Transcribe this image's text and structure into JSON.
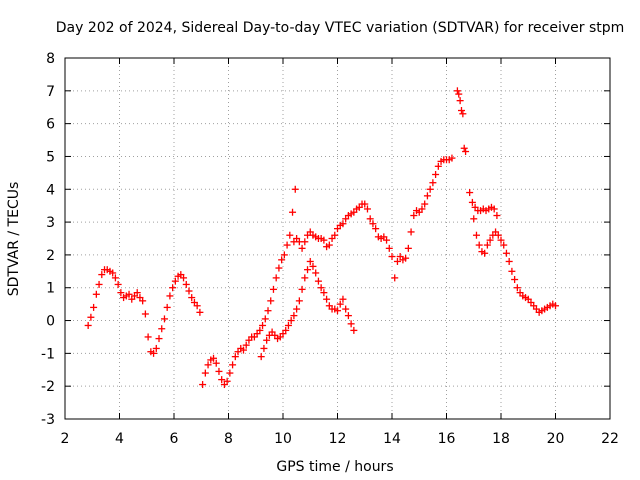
{
  "chart_data": {
    "type": "scatter",
    "title": "Day 202 of 2024, Sidereal Day-to-day VTEC variation (SDTVAR) for receiver stpm",
    "xlabel": "GPS time / hours",
    "ylabel": "SDTVAR / TECUs",
    "xlim": [
      2,
      22
    ],
    "ylim": [
      -3,
      8
    ],
    "xticks": [
      "2",
      "4",
      "6",
      "8",
      "10",
      "12",
      "14",
      "16",
      "18",
      "20",
      "22"
    ],
    "yticks": [
      "-3",
      "-2",
      "-1",
      "0",
      "1",
      "2",
      "3",
      "4",
      "5",
      "6",
      "7",
      "8"
    ],
    "grid": true,
    "marker": "+",
    "color": "#ff0000",
    "series": [
      {
        "points": [
          [
            2.85,
            -0.15
          ],
          [
            2.95,
            0.1
          ],
          [
            3.05,
            0.4
          ],
          [
            3.15,
            0.8
          ],
          [
            3.25,
            1.1
          ],
          [
            3.35,
            1.4
          ],
          [
            3.45,
            1.55
          ],
          [
            3.55,
            1.55
          ],
          [
            3.65,
            1.5
          ],
          [
            3.75,
            1.45
          ],
          [
            3.85,
            1.3
          ],
          [
            3.95,
            1.1
          ],
          [
            4.05,
            0.85
          ],
          [
            4.15,
            0.7
          ],
          [
            4.25,
            0.75
          ],
          [
            4.35,
            0.8
          ],
          [
            4.45,
            0.65
          ],
          [
            4.55,
            0.75
          ],
          [
            4.65,
            0.85
          ],
          [
            4.75,
            0.7
          ],
          [
            4.85,
            0.6
          ],
          [
            4.95,
            0.2
          ],
          [
            5.05,
            -0.5
          ],
          [
            5.15,
            -0.95
          ],
          [
            5.25,
            -1.0
          ],
          [
            5.35,
            -0.85
          ],
          [
            5.45,
            -0.55
          ],
          [
            5.55,
            -0.25
          ],
          [
            5.65,
            0.05
          ],
          [
            5.75,
            0.4
          ],
          [
            5.85,
            0.75
          ],
          [
            5.95,
            1.0
          ],
          [
            6.05,
            1.2
          ],
          [
            6.15,
            1.35
          ],
          [
            6.25,
            1.4
          ],
          [
            6.35,
            1.3
          ],
          [
            6.45,
            1.1
          ],
          [
            6.55,
            0.9
          ],
          [
            6.65,
            0.7
          ],
          [
            6.75,
            0.55
          ],
          [
            6.85,
            0.45
          ],
          [
            6.95,
            0.25
          ],
          [
            7.05,
            -1.95
          ],
          [
            7.15,
            -1.6
          ],
          [
            7.25,
            -1.35
          ],
          [
            7.35,
            -1.2
          ],
          [
            7.45,
            -1.15
          ],
          [
            7.55,
            -1.3
          ],
          [
            7.65,
            -1.55
          ],
          [
            7.75,
            -1.8
          ],
          [
            7.85,
            -1.95
          ],
          [
            7.95,
            -1.85
          ],
          [
            8.05,
            -1.6
          ],
          [
            8.15,
            -1.35
          ],
          [
            8.25,
            -1.1
          ],
          [
            8.35,
            -0.95
          ],
          [
            8.45,
            -0.85
          ],
          [
            8.55,
            -0.9
          ],
          [
            8.65,
            -0.75
          ],
          [
            8.75,
            -0.6
          ],
          [
            8.85,
            -0.5
          ],
          [
            8.95,
            -0.5
          ],
          [
            9.05,
            -0.4
          ],
          [
            9.15,
            -0.3
          ],
          [
            9.25,
            -0.15
          ],
          [
            9.35,
            0.05
          ],
          [
            9.45,
            0.3
          ],
          [
            9.55,
            0.6
          ],
          [
            9.65,
            0.95
          ],
          [
            9.75,
            1.3
          ],
          [
            9.85,
            1.6
          ],
          [
            9.95,
            1.85
          ],
          [
            10.05,
            2.0
          ],
          [
            10.15,
            2.3
          ],
          [
            10.25,
            2.6
          ],
          [
            10.35,
            3.3
          ],
          [
            10.45,
            4.0
          ],
          [
            9.2,
            -1.1
          ],
          [
            9.3,
            -0.85
          ],
          [
            9.4,
            -0.6
          ],
          [
            9.5,
            -0.45
          ],
          [
            9.6,
            -0.35
          ],
          [
            9.7,
            -0.45
          ],
          [
            9.8,
            -0.55
          ],
          [
            9.9,
            -0.5
          ],
          [
            10.0,
            -0.4
          ],
          [
            10.1,
            -0.3
          ],
          [
            10.2,
            -0.15
          ],
          [
            10.3,
            0.0
          ],
          [
            10.4,
            0.15
          ],
          [
            10.5,
            0.35
          ],
          [
            10.6,
            0.6
          ],
          [
            10.7,
            0.95
          ],
          [
            10.8,
            1.3
          ],
          [
            10.9,
            1.55
          ],
          [
            11.0,
            1.8
          ],
          [
            11.1,
            1.65
          ],
          [
            11.2,
            1.45
          ],
          [
            11.3,
            1.2
          ],
          [
            11.4,
            1.0
          ],
          [
            11.5,
            0.85
          ],
          [
            11.6,
            0.65
          ],
          [
            11.7,
            0.45
          ],
          [
            11.8,
            0.35
          ],
          [
            11.9,
            0.35
          ],
          [
            12.0,
            0.3
          ],
          [
            12.1,
            0.5
          ],
          [
            12.2,
            0.65
          ],
          [
            12.3,
            0.35
          ],
          [
            12.4,
            0.15
          ],
          [
            12.5,
            -0.1
          ],
          [
            12.6,
            -0.3
          ],
          [
            10.4,
            2.4
          ],
          [
            10.5,
            2.5
          ],
          [
            10.6,
            2.4
          ],
          [
            10.7,
            2.2
          ],
          [
            10.8,
            2.4
          ],
          [
            10.9,
            2.6
          ],
          [
            11.0,
            2.7
          ],
          [
            11.1,
            2.6
          ],
          [
            11.2,
            2.55
          ],
          [
            11.3,
            2.5
          ],
          [
            11.4,
            2.5
          ],
          [
            11.5,
            2.45
          ],
          [
            11.6,
            2.25
          ],
          [
            11.7,
            2.3
          ],
          [
            11.8,
            2.5
          ],
          [
            11.9,
            2.6
          ],
          [
            12.0,
            2.8
          ],
          [
            12.1,
            2.9
          ],
          [
            12.2,
            2.95
          ],
          [
            12.3,
            3.1
          ],
          [
            12.4,
            3.2
          ],
          [
            12.5,
            3.25
          ],
          [
            12.6,
            3.3
          ],
          [
            12.7,
            3.4
          ],
          [
            12.8,
            3.45
          ],
          [
            12.9,
            3.55
          ],
          [
            13.0,
            3.55
          ],
          [
            13.1,
            3.4
          ],
          [
            13.2,
            3.1
          ],
          [
            13.3,
            2.95
          ],
          [
            13.4,
            2.8
          ],
          [
            13.5,
            2.55
          ],
          [
            13.6,
            2.5
          ],
          [
            13.7,
            2.55
          ],
          [
            13.8,
            2.45
          ],
          [
            13.9,
            2.2
          ],
          [
            14.0,
            1.95
          ],
          [
            14.1,
            1.3
          ],
          [
            14.2,
            1.8
          ],
          [
            14.3,
            1.95
          ],
          [
            14.4,
            1.85
          ],
          [
            14.5,
            1.9
          ],
          [
            14.6,
            2.2
          ],
          [
            14.7,
            2.7
          ],
          [
            14.8,
            3.2
          ],
          [
            14.9,
            3.35
          ],
          [
            15.0,
            3.3
          ],
          [
            15.1,
            3.4
          ],
          [
            15.2,
            3.55
          ],
          [
            15.3,
            3.8
          ],
          [
            15.4,
            4.0
          ],
          [
            15.5,
            4.2
          ],
          [
            15.6,
            4.45
          ],
          [
            15.7,
            4.7
          ],
          [
            15.8,
            4.85
          ],
          [
            15.9,
            4.9
          ],
          [
            16.0,
            4.9
          ],
          [
            16.1,
            4.9
          ],
          [
            16.2,
            4.95
          ],
          [
            16.4,
            7.0
          ],
          [
            16.45,
            6.9
          ],
          [
            16.5,
            6.7
          ],
          [
            16.55,
            6.4
          ],
          [
            16.6,
            6.3
          ],
          [
            16.65,
            5.25
          ],
          [
            16.7,
            5.15
          ],
          [
            16.85,
            3.9
          ],
          [
            16.95,
            3.6
          ],
          [
            17.05,
            3.45
          ],
          [
            17.15,
            3.35
          ],
          [
            17.25,
            3.35
          ],
          [
            17.35,
            3.4
          ],
          [
            17.45,
            3.35
          ],
          [
            17.55,
            3.4
          ],
          [
            17.65,
            3.45
          ],
          [
            17.75,
            3.4
          ],
          [
            17.85,
            3.2
          ],
          [
            17.0,
            3.1
          ],
          [
            17.1,
            2.6
          ],
          [
            17.2,
            2.3
          ],
          [
            17.3,
            2.1
          ],
          [
            17.4,
            2.05
          ],
          [
            17.5,
            2.3
          ],
          [
            17.6,
            2.45
          ],
          [
            17.7,
            2.6
          ],
          [
            17.8,
            2.7
          ],
          [
            17.9,
            2.6
          ],
          [
            18.0,
            2.45
          ],
          [
            18.1,
            2.3
          ],
          [
            18.2,
            2.05
          ],
          [
            18.3,
            1.8
          ],
          [
            18.4,
            1.5
          ],
          [
            18.5,
            1.25
          ],
          [
            18.6,
            1.0
          ],
          [
            18.7,
            0.85
          ],
          [
            18.8,
            0.75
          ],
          [
            18.9,
            0.7
          ],
          [
            19.0,
            0.65
          ],
          [
            19.1,
            0.55
          ],
          [
            19.2,
            0.45
          ],
          [
            19.3,
            0.35
          ],
          [
            19.4,
            0.25
          ],
          [
            19.5,
            0.3
          ],
          [
            19.6,
            0.35
          ],
          [
            19.7,
            0.4
          ],
          [
            19.8,
            0.45
          ],
          [
            19.9,
            0.5
          ],
          [
            20.0,
            0.45
          ]
        ]
      }
    ]
  }
}
